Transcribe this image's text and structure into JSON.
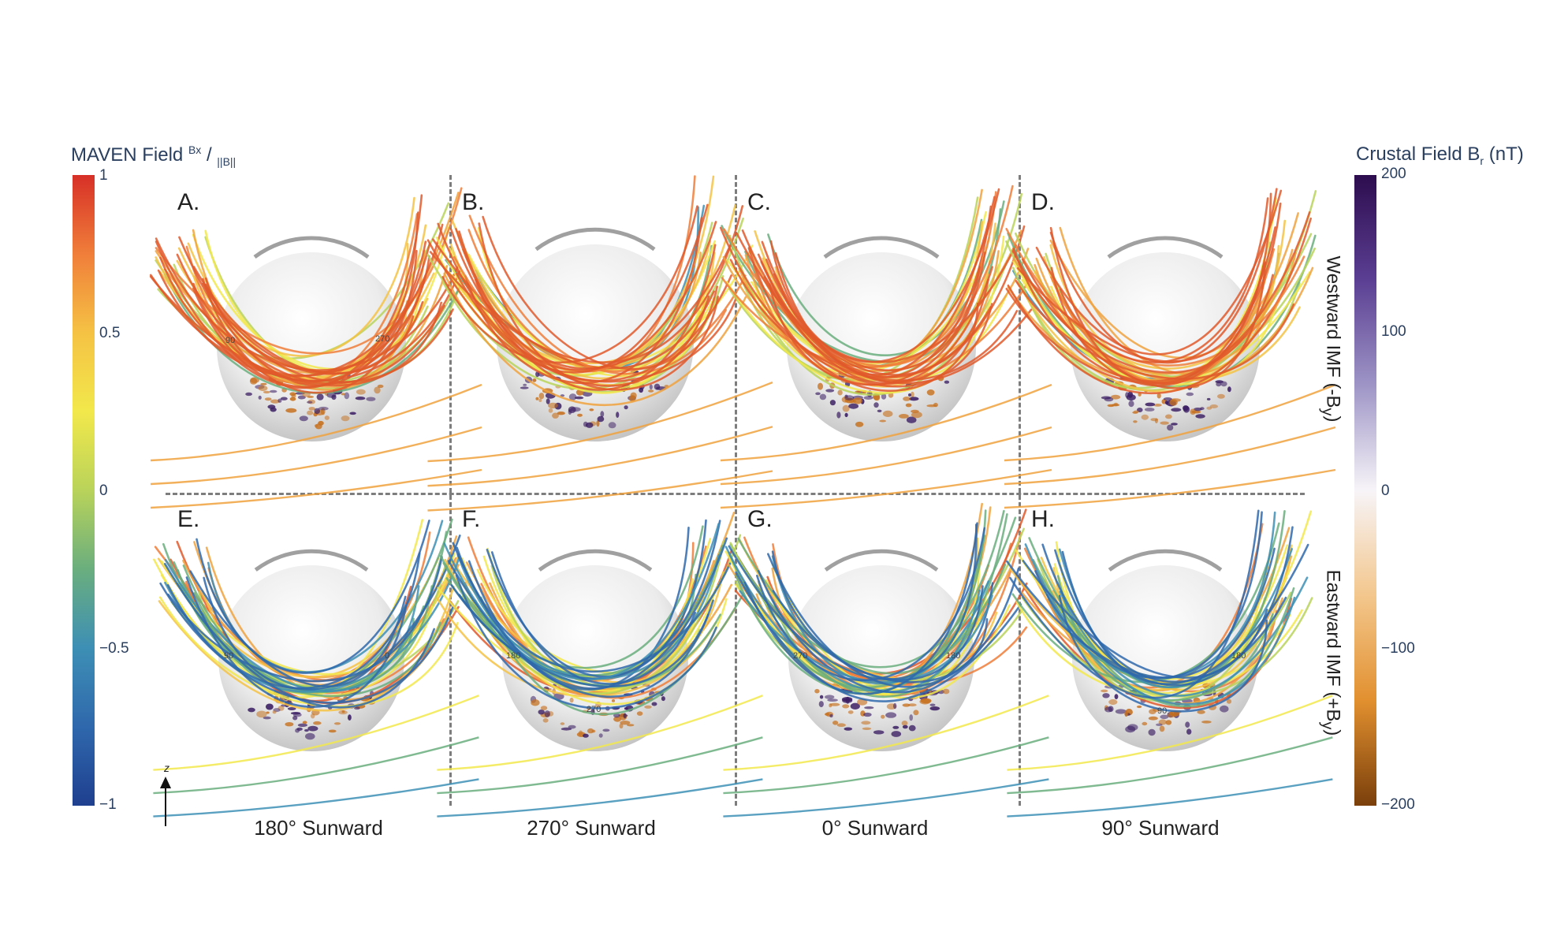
{
  "left_colorbar": {
    "title_main": "MAVEN Field",
    "title_num": "Bx",
    "title_slash": "/",
    "title_den": "||B||",
    "ticks": [
      "1",
      "0.5",
      "0",
      "−0.5",
      "−1"
    ],
    "colors": [
      "#d73027",
      "#f07e3a",
      "#f5c244",
      "#f2e84b",
      "#b9d35a",
      "#6aae7e",
      "#3d8fb5",
      "#2f68ac",
      "#1f3f8f"
    ]
  },
  "right_colorbar": {
    "title_main": "Crustal Field B",
    "title_sub": "r",
    "title_unit": "(nT)",
    "ticks": [
      "200",
      "100",
      "0",
      "−100",
      "−200"
    ],
    "colors": [
      "#2d0c4e",
      "#5b3f93",
      "#9e95c6",
      "#f7f4f8",
      "#f3c78d",
      "#e2902f",
      "#7a3f0b"
    ]
  },
  "panels": [
    {
      "label": "A.",
      "tag": "90",
      "tag2": "270"
    },
    {
      "label": "B.",
      "tag": "",
      "tag2": ""
    },
    {
      "label": "C.",
      "tag": "",
      "tag2": ""
    },
    {
      "label": "D.",
      "tag": "",
      "tag2": ""
    },
    {
      "label": "E.",
      "tag": "90",
      "tag2": "0"
    },
    {
      "label": "F.",
      "tag": "180",
      "tag2": "270"
    },
    {
      "label": "G.",
      "tag": "270",
      "tag2": "180"
    },
    {
      "label": "H.",
      "tag": "90",
      "tag2": "180"
    }
  ],
  "row_labels": {
    "top_main": "Westward IMF (-B",
    "top_sub": "y",
    "top_close": ")",
    "bottom_main": "Eastward IMF (+B",
    "bottom_sub": "y",
    "bottom_close": ")"
  },
  "column_labels": [
    "180° Sunward",
    "270° Sunward",
    "0° Sunward",
    "90° Sunward"
  ],
  "axis_indicator": "z"
}
